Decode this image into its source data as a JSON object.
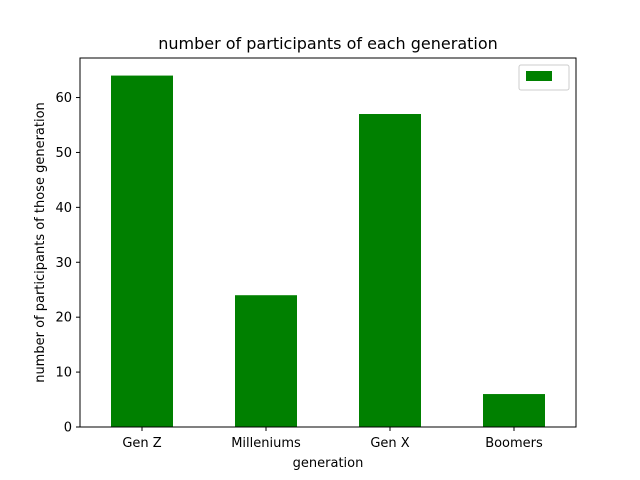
{
  "chart_data": {
    "type": "bar",
    "title": "number of participants of each generation",
    "xlabel": "generation",
    "ylabel": "number of participants of those generation",
    "categories": [
      "Gen Z",
      "Milleniums",
      "Gen X",
      "Boomers"
    ],
    "values": [
      64,
      24,
      57,
      6
    ],
    "ylim": [
      0,
      67.2
    ],
    "yticks": [
      0,
      10,
      20,
      30,
      40,
      50,
      60
    ],
    "bar_color": "#008000",
    "grid": false,
    "legend": {
      "placement": "top-right",
      "entries": [
        {
          "label": "",
          "color": "#008000"
        }
      ]
    }
  }
}
